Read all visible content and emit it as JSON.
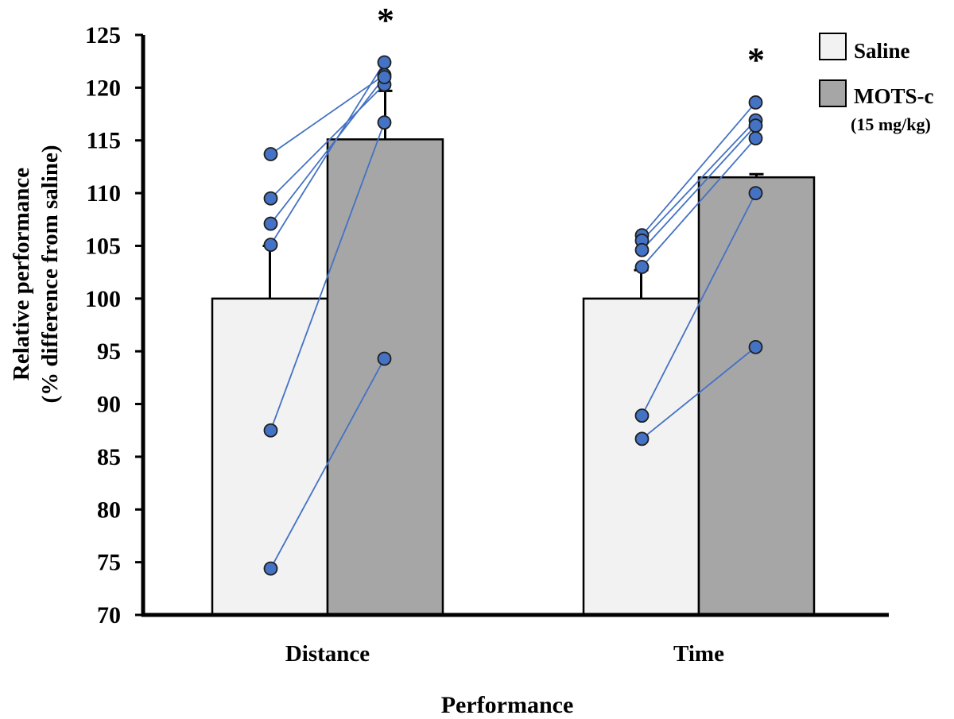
{
  "chart_data": {
    "type": "bar",
    "xlabel": "Performance",
    "ylabel": [
      "Relative performance",
      "(% difference from saline)"
    ],
    "ylim": [
      70,
      125
    ],
    "yticks": [
      "70",
      "75",
      "80",
      "85",
      "90",
      "95",
      "100",
      "105",
      "110",
      "115",
      "120",
      "125"
    ],
    "categories": [
      "Distance",
      "Time"
    ],
    "series": [
      {
        "name": "Saline",
        "values": [
          100,
          100
        ],
        "error": [
          5.0,
          2.7
        ],
        "color": "#f2f2f2"
      },
      {
        "name": "MOTS-c",
        "values": [
          115.1,
          111.5
        ],
        "error": [
          4.6,
          0.3
        ],
        "color": "#a6a6a6"
      }
    ],
    "legend": {
      "position": "top-right",
      "entries": [
        {
          "label": "Saline",
          "sublabel": ""
        },
        {
          "label": "MOTS-c",
          "sublabel": "(15 mg/kg)"
        }
      ]
    },
    "individual_points": [
      {
        "category": "Distance",
        "pairs": [
          [
            113.7,
            121.2
          ],
          [
            109.5,
            120.3
          ],
          [
            107.1,
            121.0
          ],
          [
            105.1,
            122.4
          ],
          [
            87.5,
            116.7
          ],
          [
            74.4,
            94.3
          ]
        ]
      },
      {
        "category": "Time",
        "pairs": [
          [
            106.0,
            118.6
          ],
          [
            105.5,
            116.9
          ],
          [
            104.6,
            116.4
          ],
          [
            103.0,
            115.2
          ],
          [
            88.9,
            110.0
          ],
          [
            86.7,
            95.4
          ]
        ]
      }
    ],
    "point_color": "#4472c4",
    "significance": [
      "*",
      "*"
    ],
    "grid": false
  }
}
